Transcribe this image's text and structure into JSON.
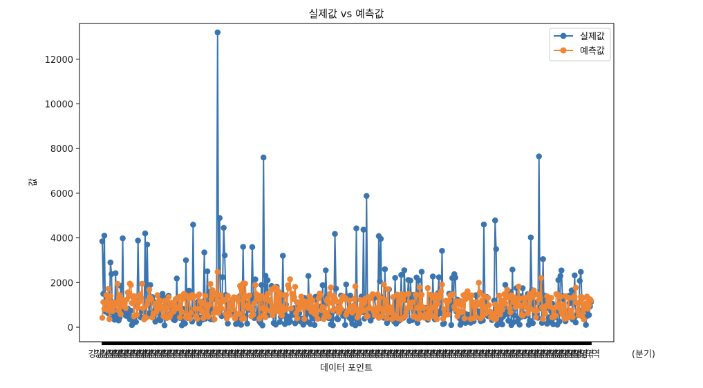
{
  "chart_data": {
    "type": "line",
    "title": "실제값 vs 예측값",
    "xlabel": "데이터 포인트",
    "ylabel": "값",
    "ylim": [
      -650,
      13600
    ],
    "yticks": [
      0,
      2000,
      4000,
      6000,
      8000,
      10000,
      12000
    ],
    "n_points": 480,
    "grid": false,
    "legend_position": "top-right",
    "series": [
      {
        "name": "실제값",
        "color": "#3b75af",
        "approx_range": [
          0,
          13200
        ],
        "spikes": [
          {
            "index": 0,
            "value": 3850
          },
          {
            "index": 2,
            "value": 4100
          },
          {
            "index": 8,
            "value": 2900
          },
          {
            "index": 20,
            "value": 3980
          },
          {
            "index": 35,
            "value": 3880
          },
          {
            "index": 42,
            "value": 4200
          },
          {
            "index": 44,
            "value": 3700
          },
          {
            "index": 82,
            "value": 3000
          },
          {
            "index": 89,
            "value": 4590
          },
          {
            "index": 100,
            "value": 3350
          },
          {
            "index": 113,
            "value": 13200
          },
          {
            "index": 115,
            "value": 4890
          },
          {
            "index": 119,
            "value": 4450
          },
          {
            "index": 120,
            "value": 3220
          },
          {
            "index": 138,
            "value": 3600
          },
          {
            "index": 147,
            "value": 3590
          },
          {
            "index": 158,
            "value": 7600
          },
          {
            "index": 177,
            "value": 3200
          },
          {
            "index": 228,
            "value": 4180
          },
          {
            "index": 249,
            "value": 4430
          },
          {
            "index": 256,
            "value": 4370
          },
          {
            "index": 259,
            "value": 5880
          },
          {
            "index": 271,
            "value": 4080
          },
          {
            "index": 273,
            "value": 3960
          },
          {
            "index": 333,
            "value": 3420
          },
          {
            "index": 374,
            "value": 4600
          },
          {
            "index": 385,
            "value": 4780
          },
          {
            "index": 386,
            "value": 3500
          },
          {
            "index": 402,
            "value": 2580
          },
          {
            "index": 420,
            "value": 4020
          },
          {
            "index": 428,
            "value": 7650
          },
          {
            "index": 432,
            "value": 3050
          },
          {
            "index": 469,
            "value": 2480
          }
        ]
      },
      {
        "name": "예측값",
        "color": "#ef8636",
        "approx_range": [
          200,
          2480
        ],
        "spikes": [
          {
            "index": 113,
            "value": 2480
          },
          {
            "index": 184,
            "value": 2150
          },
          {
            "index": 430,
            "value": 2200
          }
        ]
      }
    ]
  },
  "x_axis_tick_text": "강남(역",
  "x_axis_tick_text_right": "(분기)"
}
